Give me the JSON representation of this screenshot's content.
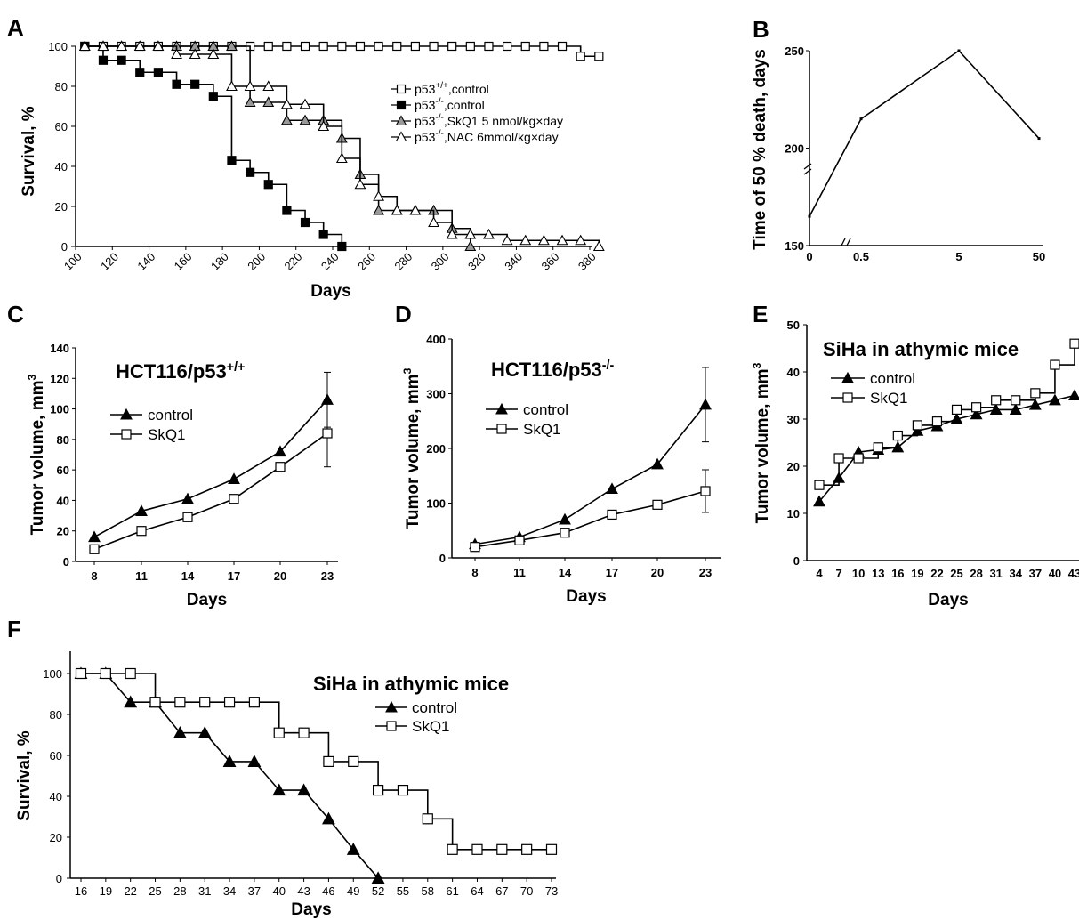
{
  "chart_data": [
    {
      "panel": "A",
      "type": "line",
      "xlabel": "Days",
      "ylabel": "Survival, %",
      "xlim": [
        100,
        380
      ],
      "ylim": [
        0,
        100
      ],
      "xticks": [
        "100",
        "120",
        "140",
        "160",
        "180",
        "200",
        "220",
        "240",
        "260",
        "280",
        "300",
        "320",
        "340",
        "360",
        "380"
      ],
      "yticks": [
        "0",
        "20",
        "40",
        "60",
        "80",
        "100"
      ],
      "legend_position": "top-right",
      "series": [
        {
          "name": "p53+/+,control",
          "marker": "open-square",
          "x": [
            105,
            115,
            125,
            135,
            145,
            155,
            165,
            175,
            185,
            195,
            205,
            215,
            225,
            235,
            245,
            255,
            265,
            275,
            285,
            295,
            305,
            315,
            325,
            335,
            345,
            355,
            365,
            375,
            385
          ],
          "y": [
            100,
            100,
            100,
            100,
            100,
            100,
            100,
            100,
            100,
            100,
            100,
            100,
            100,
            100,
            100,
            100,
            100,
            100,
            100,
            100,
            100,
            100,
            100,
            100,
            100,
            100,
            100,
            95,
            95
          ]
        },
        {
          "name": "p53-/-,control",
          "marker": "filled-square",
          "x": [
            105,
            115,
            125,
            135,
            145,
            155,
            165,
            175,
            185,
            195,
            205,
            215,
            225,
            235,
            245
          ],
          "y": [
            100,
            93,
            93,
            87,
            87,
            81,
            81,
            75,
            43,
            37,
            31,
            18,
            12,
            6,
            0
          ]
        },
        {
          "name": "p53-/-,SkQ1  5 nmol/kg×day",
          "marker": "gray-triangle",
          "x": [
            105,
            115,
            125,
            135,
            145,
            155,
            165,
            175,
            185,
            195,
            205,
            215,
            225,
            235,
            245,
            255,
            265,
            275,
            285,
            295,
            305,
            315
          ],
          "y": [
            100,
            100,
            100,
            100,
            100,
            100,
            100,
            100,
            100,
            72,
            72,
            63,
            63,
            63,
            54,
            36,
            18,
            18,
            18,
            18,
            9,
            0
          ]
        },
        {
          "name": "p53-/-,NAC  6mmol/kg×day",
          "marker": "open-triangle",
          "x": [
            105,
            115,
            125,
            135,
            145,
            155,
            165,
            175,
            185,
            195,
            205,
            215,
            225,
            235,
            245,
            255,
            265,
            275,
            285,
            295,
            305,
            315,
            325,
            335,
            345,
            355,
            365,
            375,
            385
          ],
          "y": [
            100,
            100,
            100,
            100,
            100,
            96,
            96,
            96,
            80,
            80,
            80,
            71,
            71,
            60,
            44,
            31,
            25,
            18,
            18,
            12,
            6,
            6,
            6,
            3,
            3,
            3,
            3,
            3,
            0
          ]
        }
      ]
    },
    {
      "panel": "B",
      "type": "line",
      "ylabel": "Time of 50 % death, days",
      "categories": [
        "0",
        "0.5",
        "5",
        "50"
      ],
      "yticks": [
        "150",
        "200",
        "250"
      ],
      "ylim": [
        150,
        250
      ],
      "series": [
        {
          "values": [
            165,
            215,
            250,
            205
          ]
        }
      ]
    },
    {
      "panel": "C",
      "type": "line",
      "title": "HCT116/p53",
      "title_sup": "+/+",
      "xlabel": "Days",
      "ylabel": "Tumor  volume, mm",
      "ylabel_sup": "3",
      "x": [
        8,
        11,
        14,
        17,
        20,
        23
      ],
      "ylim": [
        0,
        140
      ],
      "yticks": [
        "0",
        "20",
        "40",
        "60",
        "80",
        "100",
        "120",
        "140"
      ],
      "legend_position": "upper-left",
      "series": [
        {
          "name": "control",
          "marker": "filled-triangle",
          "values": [
            16,
            33,
            41,
            54,
            72,
            106
          ],
          "error_last": 18
        },
        {
          "name": "SkQ1",
          "marker": "open-square",
          "values": [
            8,
            20,
            29,
            41,
            62,
            84
          ],
          "error_last": 22
        }
      ]
    },
    {
      "panel": "D",
      "type": "line",
      "title": "HCT116/p53",
      "title_sup": "-/-",
      "xlabel": "Days",
      "ylabel": "Tumor  volume, mm",
      "ylabel_sup": "3",
      "x": [
        8,
        11,
        14,
        17,
        20,
        23
      ],
      "ylim": [
        0,
        400
      ],
      "yticks": [
        "0",
        "100",
        "200",
        "300",
        "400"
      ],
      "legend_position": "upper-left",
      "series": [
        {
          "name": "control",
          "marker": "filled-triangle",
          "values": [
            25,
            38,
            70,
            126,
            171,
            280
          ],
          "error_last": 68
        },
        {
          "name": "SkQ1",
          "marker": "open-square",
          "values": [
            20,
            32,
            46,
            79,
            97,
            122
          ],
          "error_last": 39
        }
      ]
    },
    {
      "panel": "E",
      "type": "line",
      "title": "SiHa in athymic mice",
      "xlabel": "Days",
      "ylabel": "Tumor  volume, mm",
      "ylabel_sup": "3",
      "x": [
        4,
        5.5,
        7,
        8.5,
        10,
        11.5,
        13,
        14.5,
        16,
        17.5,
        19,
        20.5,
        22,
        23.5,
        25,
        26.5,
        28,
        29.5,
        31,
        32.5,
        34,
        35.5,
        37,
        38.5,
        40,
        41.5,
        43
      ],
      "xticks": [
        "4",
        "7",
        "10",
        "13",
        "16",
        "19",
        "22",
        "25",
        "28",
        "31",
        "34",
        "37",
        "40",
        "43"
      ],
      "ylim": [
        0,
        50
      ],
      "yticks": [
        "0",
        "10",
        "20",
        "30",
        "40",
        "50"
      ],
      "legend_position": "upper-left",
      "series": [
        {
          "name": "control",
          "marker": "filled-triangle",
          "x": [
            4,
            7,
            10,
            13,
            16,
            19,
            22,
            25,
            28,
            31,
            34,
            37,
            40,
            43
          ],
          "values": [
            12.5,
            17.5,
            23,
            23.5,
            24,
            27.5,
            28.5,
            30,
            31,
            32,
            32,
            33,
            34,
            35
          ]
        },
        {
          "name": "SkQ1",
          "marker": "open-square",
          "x": [
            4,
            7,
            10,
            13,
            16,
            19,
            22,
            25,
            28,
            31,
            34,
            37,
            40,
            43
          ],
          "values": [
            16,
            21.7,
            21.7,
            24,
            26.5,
            28.7,
            29.5,
            32,
            32.5,
            34,
            34,
            35.5,
            41.5,
            46
          ]
        }
      ]
    },
    {
      "panel": "F",
      "type": "line",
      "title": "SiHa in athymic mice",
      "xlabel": "Days",
      "ylabel": "Survival, %",
      "xticks": [
        "16",
        "19",
        "22",
        "25",
        "28",
        "31",
        "34",
        "37",
        "40",
        "43",
        "46",
        "49",
        "52",
        "55",
        "58",
        "61",
        "64",
        "67",
        "70",
        "73"
      ],
      "ylim": [
        0,
        100
      ],
      "yticks": [
        "0",
        "20",
        "40",
        "60",
        "80",
        "100"
      ],
      "legend_position": "upper-right",
      "series": [
        {
          "name": "control",
          "marker": "filled-triangle",
          "x": [
            16,
            19,
            22,
            25,
            28,
            31,
            34,
            37,
            40,
            43,
            46,
            49,
            52
          ],
          "values": [
            100,
            100,
            86,
            86,
            71,
            71,
            57,
            57,
            43,
            43,
            29,
            14,
            0
          ]
        },
        {
          "name": "SkQ1",
          "marker": "open-square",
          "x": [
            16,
            19,
            22,
            25,
            28,
            31,
            34,
            37,
            40,
            43,
            46,
            49,
            52,
            55,
            58,
            61,
            64,
            67,
            70,
            73
          ],
          "values": [
            100,
            100,
            100,
            86,
            86,
            86,
            86,
            86,
            71,
            71,
            57,
            57,
            43,
            43,
            29,
            14,
            14,
            14,
            14,
            14
          ]
        }
      ]
    }
  ],
  "labels": {
    "panel_A": "A",
    "panel_B": "B",
    "panel_C": "C",
    "panel_D": "D",
    "panel_E": "E",
    "panel_F": "F"
  }
}
